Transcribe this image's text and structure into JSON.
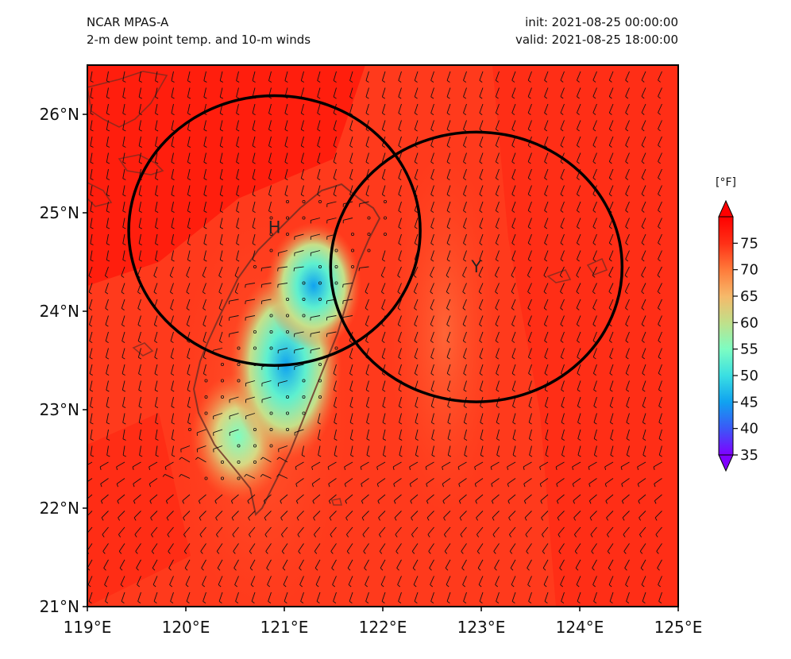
{
  "header": {
    "model": "NCAR MPAS-A",
    "field": "2-m dew point temp. and 10-m winds",
    "init": "init: 2021-08-25 00:00:00",
    "valid": "valid: 2021-08-25 18:00:00"
  },
  "map": {
    "lon_range": [
      119,
      125
    ],
    "lat_range": [
      21,
      26.5
    ],
    "x_ticks": [
      {
        "value": 119,
        "label": "119°E"
      },
      {
        "value": 120,
        "label": "120°E"
      },
      {
        "value": 121,
        "label": "121°E"
      },
      {
        "value": 122,
        "label": "122°E"
      },
      {
        "value": 123,
        "label": "123°E"
      },
      {
        "value": 124,
        "label": "124°E"
      },
      {
        "value": 125,
        "label": "125°E"
      }
    ],
    "y_ticks": [
      {
        "value": 21,
        "label": "21°N"
      },
      {
        "value": 22,
        "label": "22°N"
      },
      {
        "value": 23,
        "label": "23°N"
      },
      {
        "value": 24,
        "label": "24°N"
      },
      {
        "value": 25,
        "label": "25°N"
      },
      {
        "value": 26,
        "label": "26°N"
      }
    ],
    "markers": [
      {
        "id": "h",
        "label": "H",
        "lon": 120.9,
        "lat": 24.85
      },
      {
        "id": "y",
        "label": "Y",
        "lon": 122.95,
        "lat": 24.45
      }
    ],
    "circles": [
      {
        "id": "circle-h",
        "lon": 120.9,
        "lat": 24.82,
        "rlon": 1.48,
        "rlat": 1.37
      },
      {
        "id": "circle-y",
        "lon": 122.95,
        "lat": 24.45,
        "rlon": 1.48,
        "rlat": 1.37
      }
    ]
  },
  "colorbar": {
    "unit": "[°F]",
    "ticks": [
      35,
      40,
      45,
      50,
      55,
      60,
      65,
      70,
      75
    ],
    "min": 35,
    "max": 80,
    "colors": [
      "#7f00ff",
      "#3b58f7",
      "#10a2f0",
      "#3adfe2",
      "#7dfdc2",
      "#c0e08a",
      "#f6b96a",
      "#ff7a3a",
      "#ff3016",
      "#ff0000"
    ]
  }
}
